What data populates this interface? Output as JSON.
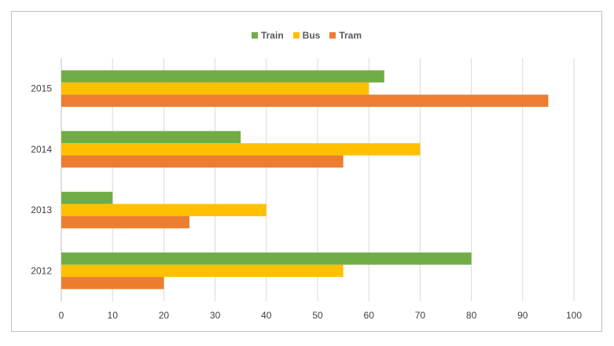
{
  "chart_data": {
    "type": "bar",
    "orientation": "horizontal",
    "categories": [
      "2012",
      "2013",
      "2014",
      "2015"
    ],
    "series": [
      {
        "name": "Train",
        "color": "#70ad47",
        "values": [
          80,
          10,
          35,
          63
        ]
      },
      {
        "name": "Bus",
        "color": "#ffc000",
        "values": [
          55,
          40,
          70,
          60
        ]
      },
      {
        "name": "Tram",
        "color": "#ed7d31",
        "values": [
          20,
          25,
          55,
          95
        ]
      }
    ],
    "title": "",
    "xlabel": "",
    "ylabel": "",
    "xlim": [
      0,
      100
    ],
    "xticks": [
      0,
      10,
      20,
      30,
      40,
      50,
      60,
      70,
      80,
      90,
      100
    ],
    "grid": "vertical",
    "legend_position": "top"
  }
}
